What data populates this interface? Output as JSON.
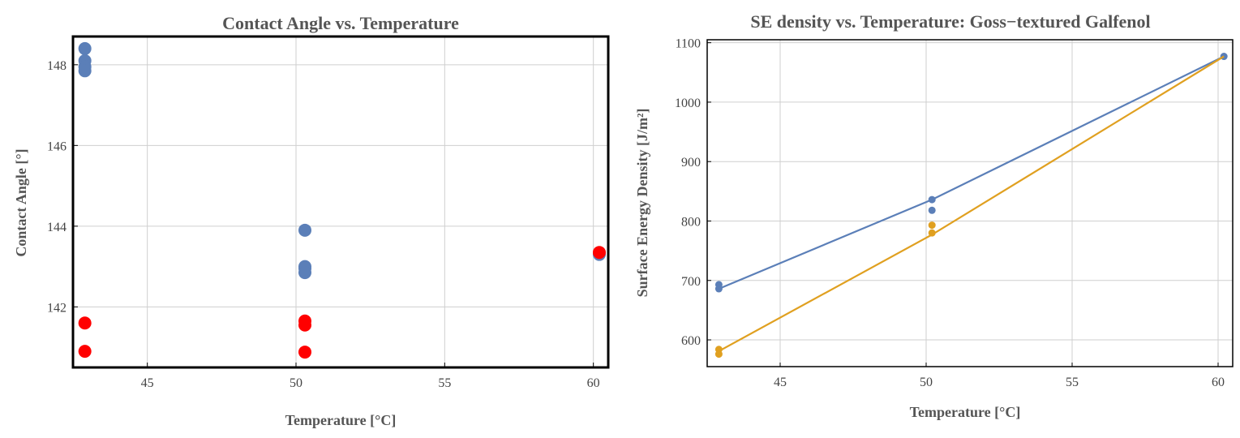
{
  "chart_data": [
    {
      "type": "scatter",
      "title": "Contact Angle vs. Temperature",
      "xlabel": "Temperature [°C]",
      "ylabel": "Contact Angle [°]",
      "xlim": [
        42.5,
        60.5
      ],
      "ylim": [
        140.5,
        148.7
      ],
      "xticks": [
        45,
        50,
        55,
        60
      ],
      "yticks": [
        142,
        144,
        146,
        148
      ],
      "grid": true,
      "colors": [
        "#5b7fb8",
        "#ff0000"
      ],
      "series": [
        {
          "color": "#5b7fb8",
          "points": [
            {
              "x": 42.9,
              "y": 148.4
            },
            {
              "x": 42.9,
              "y": 148.1
            },
            {
              "x": 42.9,
              "y": 147.95
            },
            {
              "x": 42.9,
              "y": 147.85
            },
            {
              "x": 50.3,
              "y": 143.9
            },
            {
              "x": 50.3,
              "y": 143.0
            },
            {
              "x": 50.3,
              "y": 142.95
            },
            {
              "x": 50.3,
              "y": 142.85
            },
            {
              "x": 60.2,
              "y": 143.3
            }
          ]
        },
        {
          "color": "#ff0000",
          "points": [
            {
              "x": 42.9,
              "y": 141.6
            },
            {
              "x": 42.9,
              "y": 140.9
            },
            {
              "x": 50.3,
              "y": 141.65
            },
            {
              "x": 50.3,
              "y": 141.55
            },
            {
              "x": 50.3,
              "y": 140.88
            },
            {
              "x": 60.2,
              "y": 143.35
            }
          ]
        }
      ]
    },
    {
      "type": "line",
      "title": "SE density vs. Temperature: Goss−textured Galfenol",
      "xlabel": "Temperature [°C]",
      "ylabel": "Surface Energy Density [J/m²]",
      "xlim": [
        42.5,
        60.5
      ],
      "ylim": [
        555,
        1105
      ],
      "xticks": [
        45,
        50,
        55,
        60
      ],
      "yticks": [
        600,
        700,
        800,
        900,
        1000,
        1100
      ],
      "grid": true,
      "colors": [
        "#5b7fb8",
        "#e0a020"
      ],
      "series": [
        {
          "color": "#5b7fb8",
          "line": [
            {
              "x": 42.9,
              "y": 686
            },
            {
              "x": 50.2,
              "y": 836
            },
            {
              "x": 60.2,
              "y": 1077
            }
          ],
          "points": [
            {
              "x": 42.9,
              "y": 693
            },
            {
              "x": 42.9,
              "y": 686
            },
            {
              "x": 50.2,
              "y": 836
            },
            {
              "x": 50.2,
              "y": 818
            },
            {
              "x": 60.2,
              "y": 1077
            }
          ]
        },
        {
          "color": "#e0a020",
          "line": [
            {
              "x": 42.9,
              "y": 581
            },
            {
              "x": 50.2,
              "y": 777
            },
            {
              "x": 60.2,
              "y": 1077
            }
          ],
          "points": [
            {
              "x": 42.9,
              "y": 584
            },
            {
              "x": 42.9,
              "y": 576
            },
            {
              "x": 50.2,
              "y": 793
            },
            {
              "x": 50.2,
              "y": 780
            }
          ]
        }
      ]
    }
  ]
}
